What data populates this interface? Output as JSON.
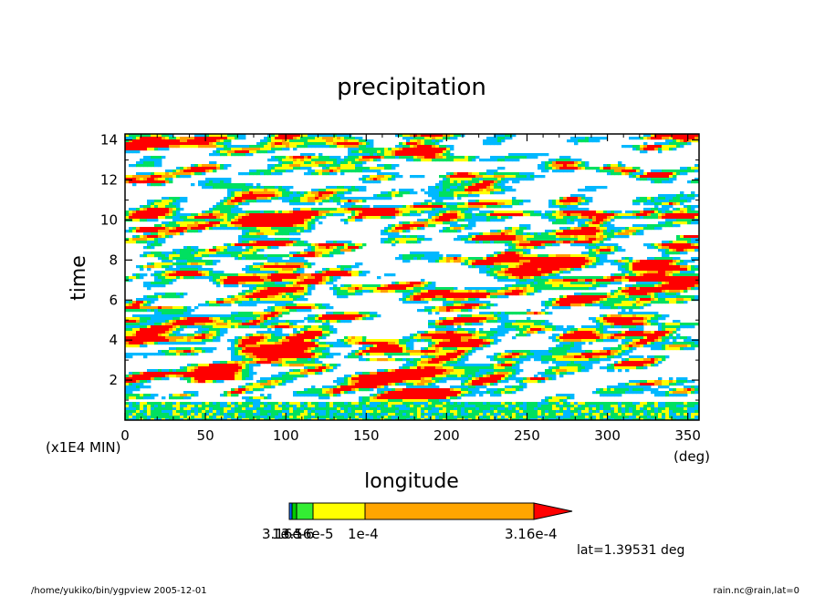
{
  "chart_data": {
    "type": "heatmap",
    "title": "precipitation",
    "xlabel": "longitude",
    "ylabel": "time",
    "x_unit": "(deg)",
    "y_unit": "(x1E4 MIN)",
    "xlim": [
      0,
      357
    ],
    "ylim": [
      0,
      14.3
    ],
    "x_ticks": [
      0,
      50,
      100,
      150,
      200,
      250,
      300,
      350
    ],
    "y_ticks": [
      2,
      4,
      6,
      8,
      10,
      12,
      14
    ],
    "x_tick_labels": [
      "0",
      "50",
      "100",
      "150",
      "200",
      "250",
      "300",
      "350"
    ],
    "y_tick_labels": [
      "2",
      "4",
      "6",
      "8",
      "10",
      "12",
      "14"
    ],
    "contour_levels": [
      3.16e-06,
      1e-05,
      3.16e-05,
      0.0001,
      0.000316
    ],
    "level_colors": [
      "#00b8ff",
      "#00e060",
      "#ffff00",
      "#ffa000",
      "#ff0000"
    ],
    "colorbar": {
      "labels": [
        "3.16e-6",
        "1e-5",
        "3.16e-5",
        "1e-4",
        "3.16e-4"
      ],
      "display_labels": [
        "3.16e-6",
        "1e-5",
        "3.16e-5",
        "1e-4",
        "3.16e-4"
      ],
      "colors": [
        "#0066ff",
        "#00cc00",
        "#33ee33",
        "#ffff00",
        "#ffa500",
        "#ff0000"
      ]
    },
    "annotation": "lat=1.39531 deg",
    "grid": false
  },
  "footer": {
    "left": "/home/yukiko/bin/ygpview  2005-12-01",
    "right": "rain.nc@rain,lat=0"
  }
}
